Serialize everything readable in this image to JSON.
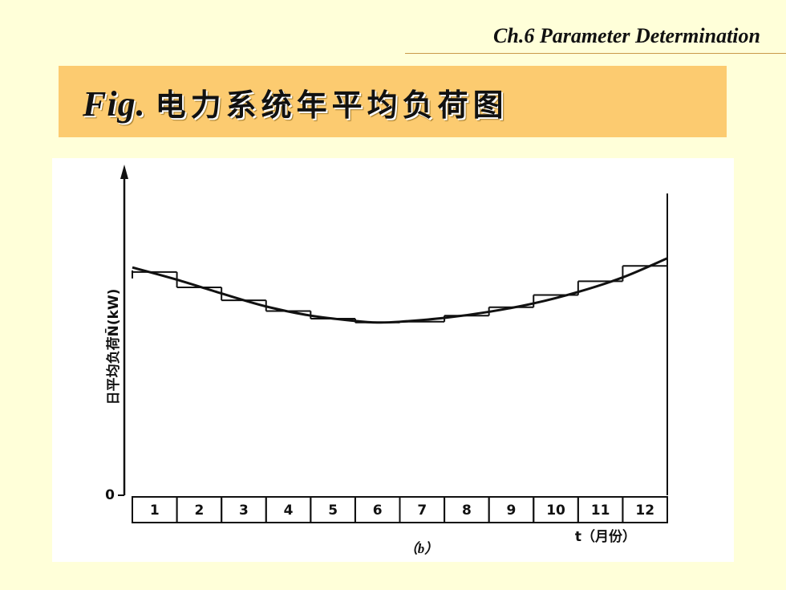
{
  "header": {
    "chapter": "Ch.6  Parameter Determination"
  },
  "title": {
    "prefix": "Fig.",
    "text": "电力系统年平均负荷图"
  },
  "chart_data": {
    "type": "line",
    "title": "",
    "subtitle": "（b）",
    "xlabel": "t（月份）",
    "ylabel": "日平均负荷N̄(kW)",
    "y_origin_label": "0",
    "categories": [
      "1",
      "2",
      "3",
      "4",
      "5",
      "6",
      "7",
      "8",
      "9",
      "10",
      "11",
      "12"
    ],
    "series": [
      {
        "values": [
          292,
          272,
          255,
          241,
          231,
          226,
          227,
          235,
          246,
          262,
          280,
          300
        ]
      }
    ],
    "curve": {
      "x": [
        0,
        1,
        2,
        3,
        4,
        5,
        5.5,
        6,
        7,
        8,
        9,
        10,
        11,
        12
      ],
      "y": [
        298,
        282,
        264,
        247,
        235,
        228,
        226,
        227,
        232,
        240,
        251,
        266,
        285,
        310
      ]
    },
    "ylim": [
      0,
      420
    ],
    "grid": false,
    "legend": "none"
  }
}
